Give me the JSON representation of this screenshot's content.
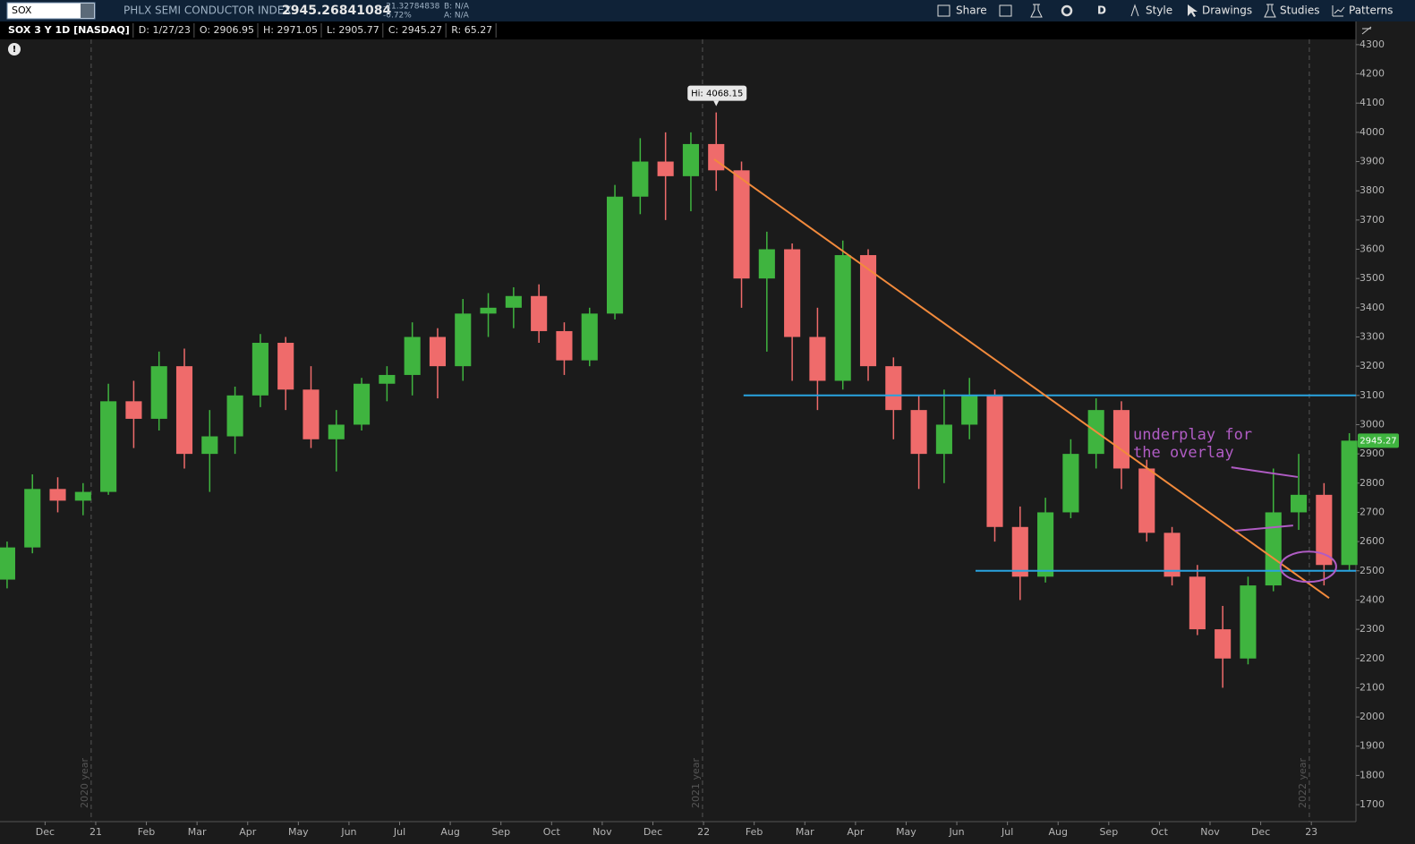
{
  "toolbar": {
    "symbol": "SOX",
    "description": "PHLX SEMI CONDUCTOR INDEX",
    "last": "2945.26841084",
    "change": "-21.32784838",
    "change_pct": "-0.72%",
    "bid": "B: N/A",
    "ask": "A: N/A",
    "buttons": [
      "Share",
      "D",
      "Style",
      "Drawings",
      "Studies",
      "Patterns"
    ]
  },
  "info_bar": [
    "SOX 3 Y 1D [NASDAQ]",
    "D: 1/27/23",
    "O: 2906.95",
    "H: 2971.05",
    "L: 2905.77",
    "C: 2945.27",
    "R: 65.27"
  ],
  "chart_data": {
    "type": "candlestick",
    "x": [
      -1.75,
      -1.25,
      -0.75,
      -0.25,
      0.25,
      0.75,
      1.25,
      1.75,
      2.25,
      2.75,
      3.25,
      3.75,
      4.25,
      4.75,
      5.25,
      5.75,
      6.25,
      6.75,
      7.25,
      7.75,
      8.25,
      8.75,
      9.25,
      9.75,
      10.25,
      10.75,
      11.25,
      11.75,
      12.25,
      12.75,
      13.25,
      13.75,
      14.25,
      14.75,
      15.25,
      15.75,
      16.25,
      16.75,
      17.25,
      17.75,
      18.25,
      18.75,
      19.25,
      19.75,
      20.25,
      20.75,
      21.25,
      21.75,
      22.25,
      22.75,
      23.25,
      23.75,
      24.25,
      24.75
    ],
    "open": [
      2470,
      2580,
      2780,
      2740,
      2770,
      3080,
      3020,
      3200,
      2900,
      2960,
      3100,
      3280,
      3120,
      2950,
      3000,
      3140,
      3170,
      3300,
      3200,
      3380,
      3400,
      3440,
      3320,
      3220,
      3380,
      3780,
      3900,
      3850,
      3960,
      3870,
      3500,
      3600,
      3300,
      3150,
      3580,
      3200,
      3050,
      2900,
      3000,
      3100,
      2650,
      2480,
      2700,
      2900,
      3050,
      2850,
      2630,
      2480,
      2300,
      2200,
      2450,
      2700,
      2760,
      2520
    ],
    "high": [
      2600,
      2830,
      2820,
      2800,
      3140,
      3150,
      3250,
      3260,
      3050,
      3130,
      3310,
      3300,
      3200,
      3050,
      3160,
      3200,
      3350,
      3330,
      3430,
      3450,
      3470,
      3480,
      3350,
      3400,
      3820,
      3980,
      4000,
      4000,
      4068.15,
      3900,
      3660,
      3620,
      3400,
      3630,
      3600,
      3230,
      3100,
      3120,
      3160,
      3120,
      2720,
      2750,
      2950,
      3090,
      3080,
      2880,
      2650,
      2520,
      2380,
      2480,
      2850,
      2900,
      2800,
      2971
    ],
    "low": [
      2440,
      2560,
      2700,
      2690,
      2760,
      2920,
      2980,
      2850,
      2770,
      2900,
      3060,
      3050,
      2920,
      2840,
      2980,
      3080,
      3100,
      3090,
      3150,
      3300,
      3330,
      3280,
      3170,
      3200,
      3360,
      3720,
      3700,
      3730,
      3800,
      3400,
      3250,
      3150,
      3050,
      3120,
      3150,
      2950,
      2780,
      2800,
      2950,
      2600,
      2400,
      2460,
      2680,
      2850,
      2780,
      2600,
      2450,
      2280,
      2100,
      2180,
      2430,
      2640,
      2450,
      2500
    ],
    "close": [
      2580,
      2780,
      2740,
      2770,
      3080,
      3020,
      3200,
      2900,
      2960,
      3100,
      3280,
      3120,
      2950,
      3000,
      3140,
      3170,
      3300,
      3200,
      3380,
      3400,
      3440,
      3320,
      3220,
      3380,
      3780,
      3900,
      3850,
      3960,
      3870,
      3500,
      3600,
      3300,
      3150,
      3580,
      3200,
      3050,
      2900,
      3000,
      3100,
      2650,
      2480,
      2700,
      2900,
      3050,
      2850,
      2630,
      2480,
      2300,
      2200,
      2450,
      2700,
      2760,
      2520,
      2945.27
    ],
    "up_color": "#3fb43f",
    "down_color": "#ef6b6b",
    "hi_label": "Hi: 4068.15",
    "xlim": [
      -1.89,
      24.88
    ],
    "ylim": [
      1642,
      4318
    ],
    "xticks": [
      {
        "value": -1,
        "label": "Dec"
      },
      {
        "value": 0,
        "label": "21"
      },
      {
        "value": 1,
        "label": "Feb"
      },
      {
        "value": 2,
        "label": "Mar"
      },
      {
        "value": 3,
        "label": "Apr"
      },
      {
        "value": 4,
        "label": "May"
      },
      {
        "value": 5,
        "label": "Jun"
      },
      {
        "value": 6,
        "label": "Jul"
      },
      {
        "value": 7,
        "label": "Aug"
      },
      {
        "value": 8,
        "label": "Sep"
      },
      {
        "value": 9,
        "label": "Oct"
      },
      {
        "value": 10,
        "label": "Nov"
      },
      {
        "value": 11,
        "label": "Dec"
      },
      {
        "value": 12,
        "label": "22"
      },
      {
        "value": 13,
        "label": "Feb"
      },
      {
        "value": 14,
        "label": "Mar"
      },
      {
        "value": 15,
        "label": "Apr"
      },
      {
        "value": 16,
        "label": "May"
      },
      {
        "value": 17,
        "label": "Jun"
      },
      {
        "value": 18,
        "label": "Jul"
      },
      {
        "value": 19,
        "label": "Aug"
      },
      {
        "value": 20,
        "label": "Sep"
      },
      {
        "value": 21,
        "label": "Oct"
      },
      {
        "value": 22,
        "label": "Nov"
      },
      {
        "value": 23,
        "label": "Dec"
      },
      {
        "value": 24,
        "label": "23"
      }
    ],
    "yticks": [
      1700,
      1800,
      1900,
      2000,
      2100,
      2200,
      2300,
      2400,
      2500,
      2600,
      2700,
      2800,
      2900,
      3000,
      3100,
      3200,
      3300,
      3400,
      3500,
      3600,
      3700,
      3800,
      3900,
      4000,
      4100,
      4200,
      4300
    ],
    "year_markers": [
      {
        "x": -0.09,
        "label": "2020 year"
      },
      {
        "x": 11.98,
        "label": "2021 year"
      },
      {
        "x": 23.96,
        "label": "2022 year"
      }
    ],
    "horizontal_lines": [
      {
        "value": 3100,
        "x_start": 12.79,
        "color": "#29a3e0"
      },
      {
        "value": 2500,
        "x_start": 17.37,
        "color": "#29a3e0"
      }
    ],
    "trend_lines": [
      {
        "x": [
          12.21,
          24.35
        ],
        "y": [
          3908,
          2407
        ],
        "color": "#f28a3c"
      },
      {
        "x": [
          22.42,
          23.73
        ],
        "y": [
          2854,
          2821
        ],
        "color": "#b05cc4"
      },
      {
        "x": [
          22.49,
          23.64
        ],
        "y": [
          2637,
          2655
        ],
        "color": "#b05cc4"
      }
    ],
    "ellipse": {
      "x": 23.94,
      "y": 2514,
      "rx": 0.55,
      "ry": 52,
      "color": "#b05cc4"
    },
    "note": [
      "underplay for",
      "the overlay"
    ]
  }
}
